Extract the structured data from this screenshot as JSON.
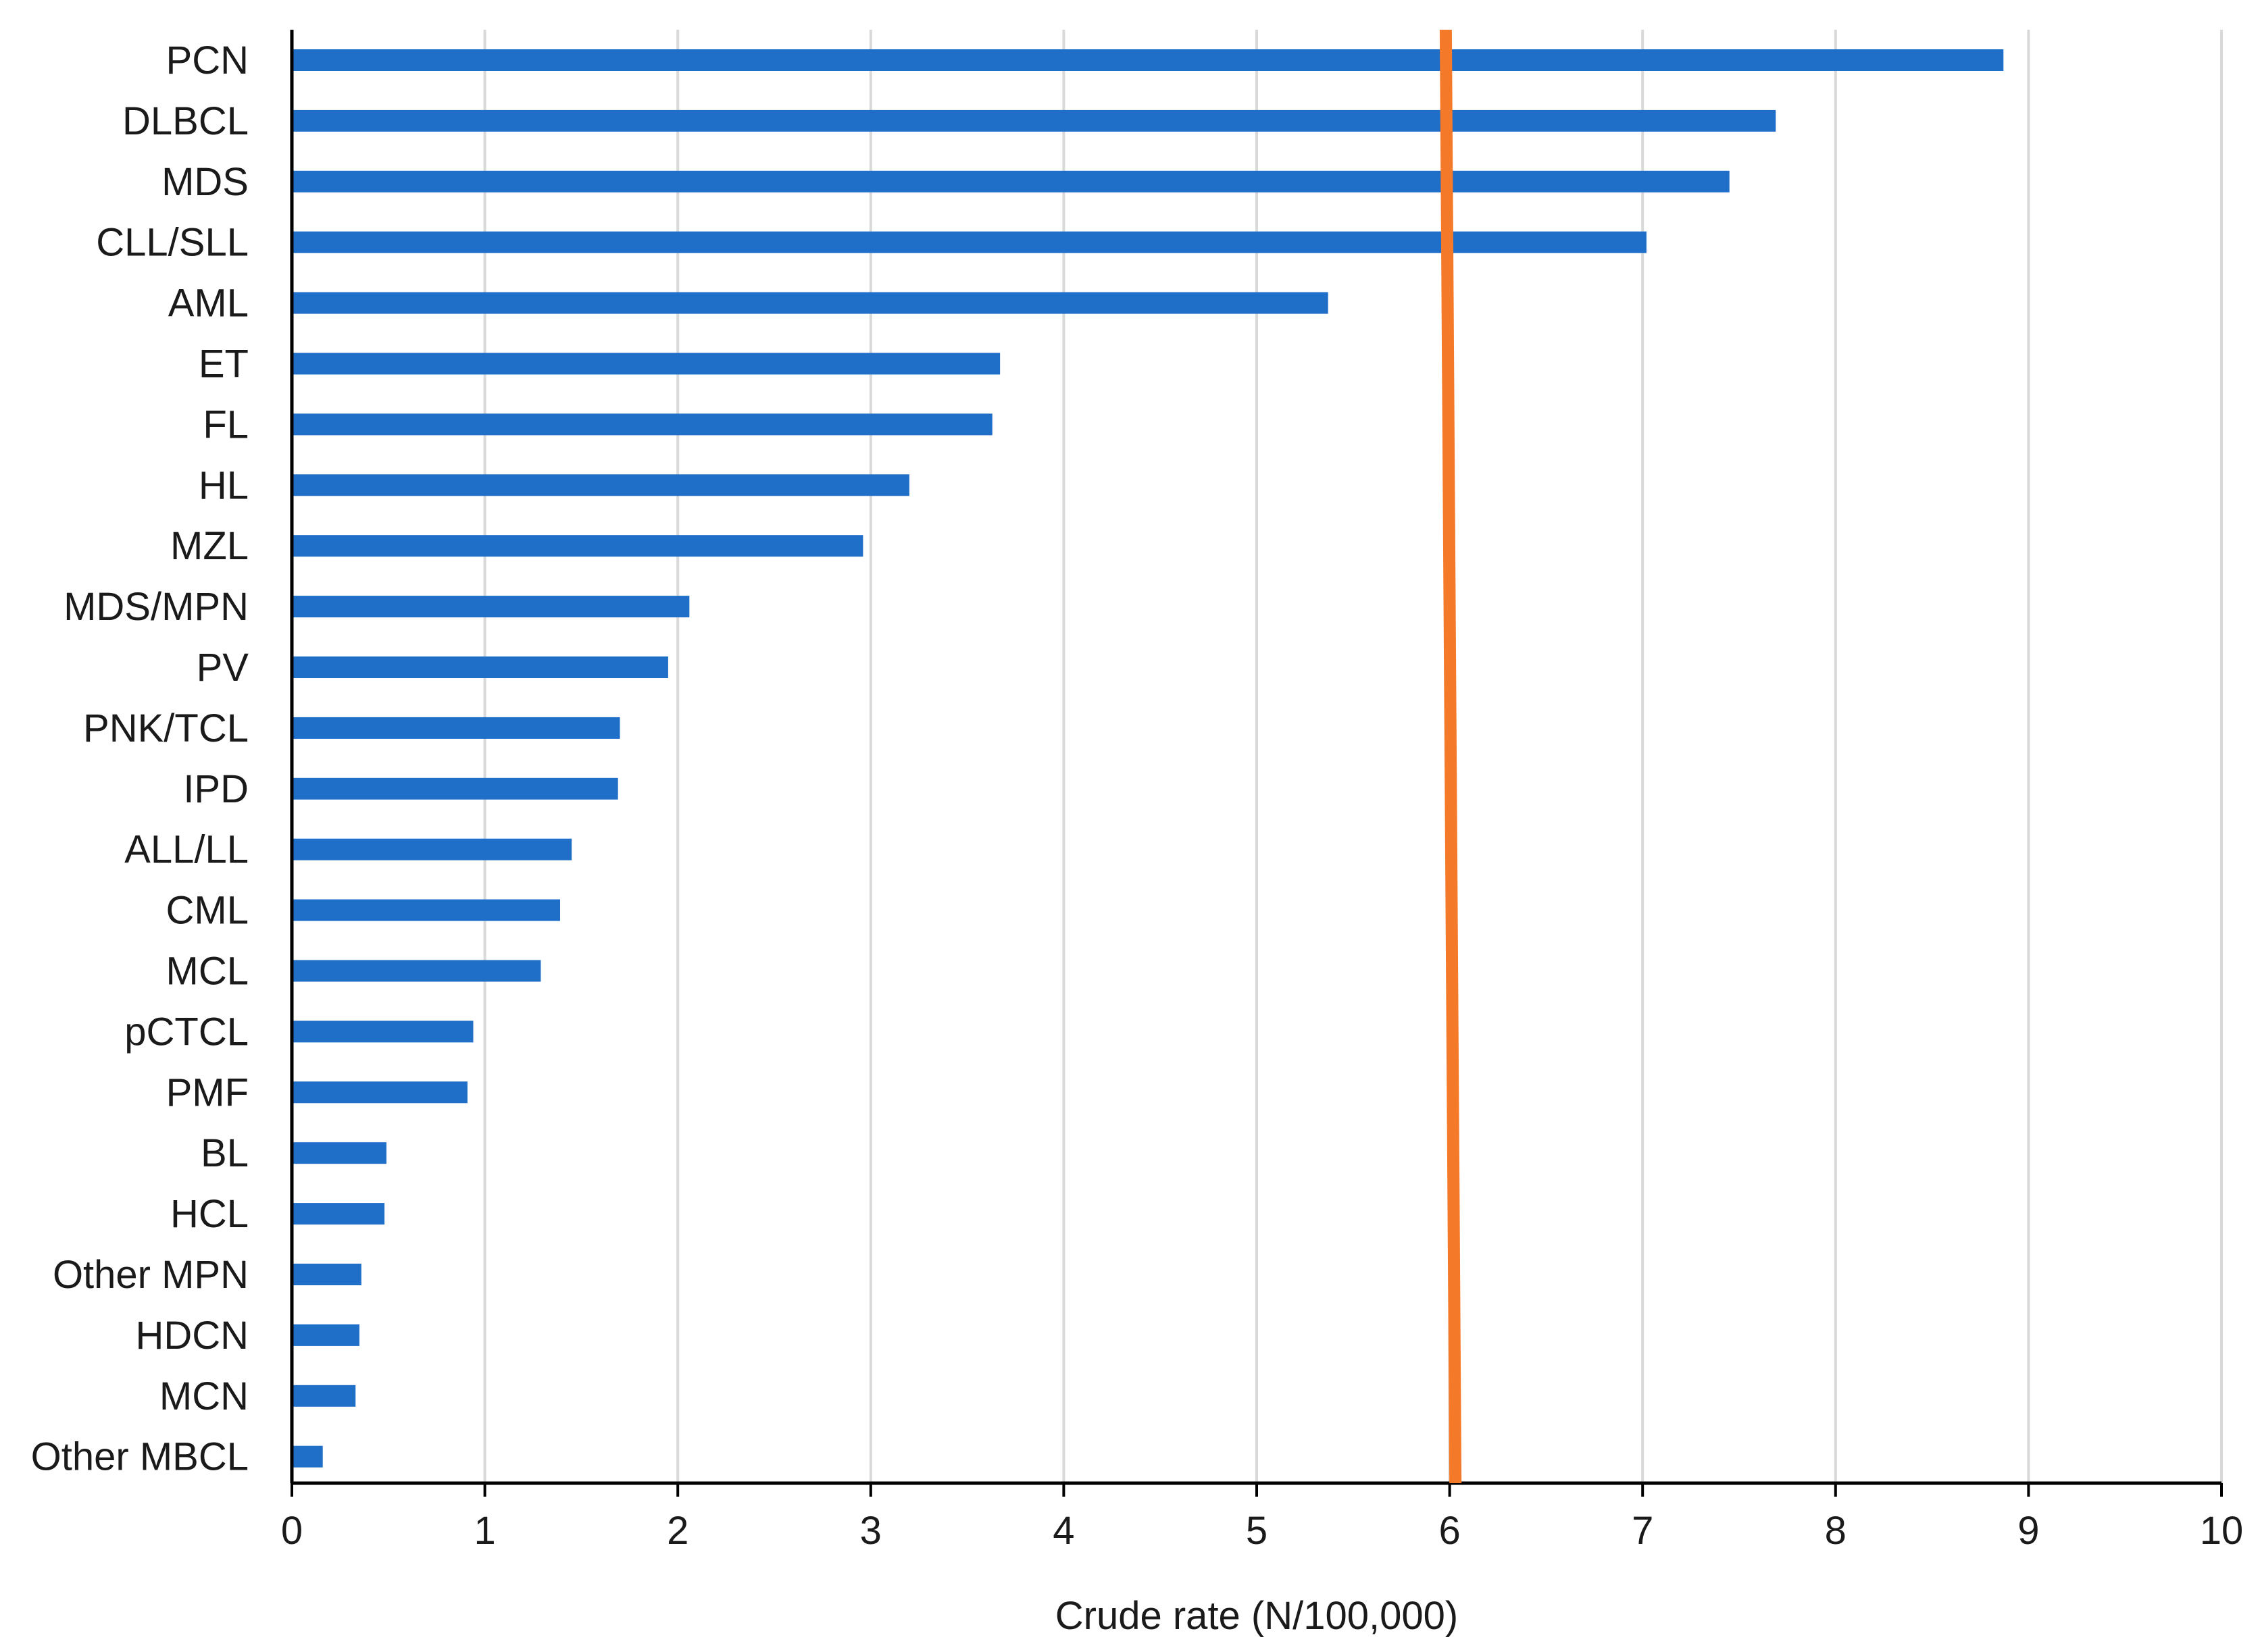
{
  "chart_data": {
    "type": "bar",
    "orientation": "horizontal",
    "categories": [
      "PCN",
      "DLBCL",
      "MDS",
      "CLL/SLL",
      "AML",
      "ET",
      "FL",
      "HL",
      "MZL",
      "MDS/MPN",
      "PV",
      "PNK/TCL",
      "IPD",
      "ALL/LL",
      "CML",
      "MCL",
      "pCTCL",
      "PMF",
      "BL",
      "HCL",
      "Other MPN",
      "HDCN",
      "MCN",
      "Other MBCL"
    ],
    "values": [
      8.87,
      7.69,
      7.45,
      7.02,
      5.37,
      3.67,
      3.63,
      3.2,
      2.96,
      2.06,
      1.95,
      1.7,
      1.69,
      1.45,
      1.39,
      1.29,
      0.94,
      0.91,
      0.49,
      0.48,
      0.36,
      0.35,
      0.33,
      0.16
    ],
    "xlabel": "Crude rate (N/100,000)",
    "ylabel": "",
    "xlim": [
      0,
      10
    ],
    "xticks": [
      "0",
      "1",
      "2",
      "3",
      "4",
      "5",
      "6",
      "7",
      "8",
      "9",
      "10"
    ],
    "grid": "vertical",
    "bar_color": "#1f6fc9",
    "reference_line": {
      "value_top": 5.98,
      "value_bottom": 6.03,
      "color": "#f47a2a"
    }
  }
}
